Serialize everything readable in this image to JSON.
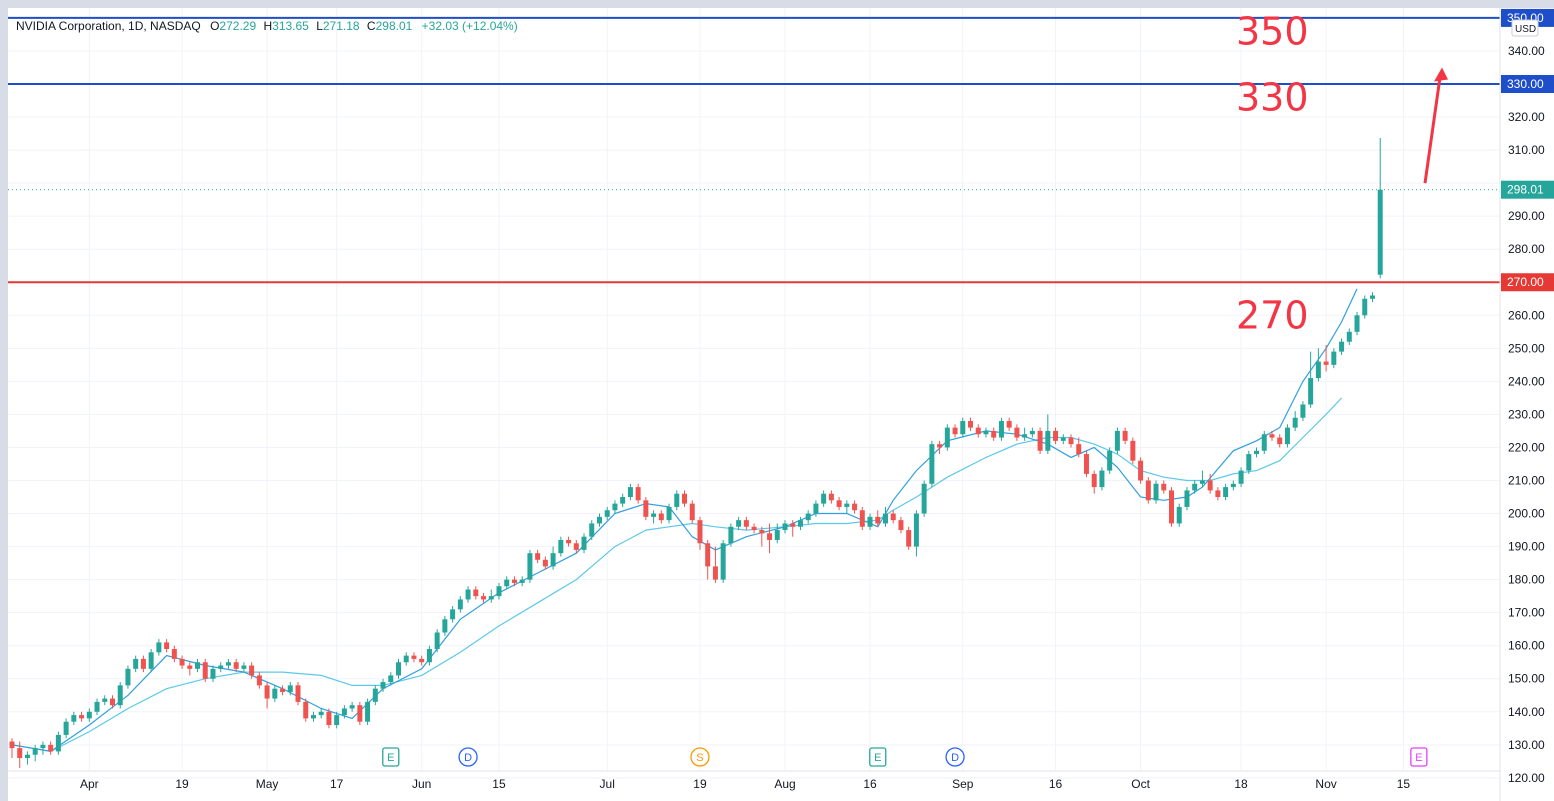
{
  "legend": {
    "symbol": "NVIDIA Corporation, 1D, NASDAQ",
    "open_label": "O",
    "open": "272.29",
    "high_label": "H",
    "high": "313.65",
    "low_label": "L",
    "low": "271.18",
    "close_label": "C",
    "close": "298.01",
    "change": "+32.03 (+12.04%)"
  },
  "price_axis": {
    "currency": "USD",
    "ticks": [
      "340.00",
      "320.00",
      "310.00",
      "290.00",
      "280.00",
      "260.00",
      "250.00",
      "240.00",
      "230.00",
      "220.00",
      "210.00",
      "200.00",
      "190.00",
      "180.00",
      "170.00",
      "160.00",
      "150.00",
      "140.00",
      "130.00",
      "120.00"
    ],
    "tick_values": [
      340,
      320,
      310,
      290,
      280,
      260,
      250,
      240,
      230,
      220,
      210,
      200,
      190,
      180,
      170,
      160,
      150,
      140,
      130,
      120
    ],
    "top_badge": "350.00"
  },
  "time_axis": {
    "labels": [
      {
        "text": "Apr",
        "i": 10
      },
      {
        "text": "19",
        "i": 22
      },
      {
        "text": "May",
        "i": 33
      },
      {
        "text": "17",
        "i": 42
      },
      {
        "text": "Jun",
        "i": 53
      },
      {
        "text": "15",
        "i": 63
      },
      {
        "text": "Jul",
        "i": 77
      },
      {
        "text": "19",
        "i": 89
      },
      {
        "text": "Aug",
        "i": 100
      },
      {
        "text": "16",
        "i": 111
      },
      {
        "text": "Sep",
        "i": 123
      },
      {
        "text": "16",
        "i": 135
      },
      {
        "text": "Oct",
        "i": 146
      },
      {
        "text": "18",
        "i": 159
      },
      {
        "text": "Nov",
        "i": 170
      },
      {
        "text": "15",
        "i": 180
      }
    ]
  },
  "colors": {
    "up": "#26a69a",
    "down": "#ef5350",
    "level_blue": "#1e4ec8",
    "level_red": "#e53935",
    "ma_fast": "#2f9fe0",
    "ma_slow": "#5cc9e8",
    "annotation": "#f23645",
    "last_price": "#26a69a"
  },
  "annotations": {
    "label_350": "350",
    "label_330": "330",
    "label_270": "270"
  },
  "event_markers": [
    {
      "letter": "E",
      "i": 49,
      "color": "#26a69a"
    },
    {
      "letter": "D",
      "i": 59,
      "color": "#2962ff"
    },
    {
      "letter": "S",
      "i": 89,
      "color": "#ff9800"
    },
    {
      "letter": "E",
      "i": 112,
      "color": "#26a69a"
    },
    {
      "letter": "D",
      "i": 122,
      "color": "#2962ff"
    },
    {
      "letter": "E",
      "i": 182,
      "color": "#e040fb"
    }
  ],
  "chart_data": {
    "type": "candlestick",
    "title": "NVIDIA Corporation, 1D, NASDAQ",
    "ylim": [
      113,
      353
    ],
    "horizontal_levels": [
      {
        "value": 350,
        "label": "350.00",
        "color": "#1e4ec8"
      },
      {
        "value": 330,
        "label": "330.00",
        "color": "#1e4ec8"
      },
      {
        "value": 270,
        "label": "270.00",
        "color": "#e53935"
      }
    ],
    "last_price": {
      "value": 298.01,
      "label": "298.01"
    },
    "candles": [
      [
        131,
        129,
        126,
        132
      ],
      [
        129,
        126,
        123,
        131
      ],
      [
        126,
        127,
        124,
        128
      ],
      [
        127,
        129,
        125,
        130
      ],
      [
        129,
        130,
        127,
        131
      ],
      [
        130,
        128,
        127,
        131
      ],
      [
        128,
        133,
        127,
        134
      ],
      [
        133,
        137,
        132,
        138
      ],
      [
        137,
        139,
        136,
        140
      ],
      [
        139,
        138,
        137,
        140
      ],
      [
        138,
        140,
        137,
        141
      ],
      [
        140,
        143,
        139,
        144
      ],
      [
        143,
        144,
        142,
        145
      ],
      [
        144,
        142,
        141,
        145
      ],
      [
        142,
        148,
        141,
        149
      ],
      [
        148,
        153,
        147,
        154
      ],
      [
        153,
        156,
        152,
        157
      ],
      [
        156,
        153,
        152,
        157
      ],
      [
        153,
        158,
        152,
        159
      ],
      [
        158,
        161,
        157,
        162
      ],
      [
        161,
        159,
        158,
        162
      ],
      [
        159,
        156,
        155,
        160
      ],
      [
        156,
        154,
        153,
        157
      ],
      [
        154,
        153,
        151,
        155
      ],
      [
        153,
        155,
        152,
        156
      ],
      [
        155,
        150,
        149,
        156
      ],
      [
        150,
        153,
        149,
        154
      ],
      [
        153,
        154,
        152,
        155
      ],
      [
        154,
        155,
        153,
        156
      ],
      [
        155,
        153,
        152,
        156
      ],
      [
        153,
        154,
        152,
        155
      ],
      [
        154,
        151,
        150,
        155
      ],
      [
        151,
        148,
        147,
        152
      ],
      [
        148,
        144,
        141,
        149
      ],
      [
        144,
        147,
        143,
        148
      ],
      [
        147,
        146,
        145,
        148
      ],
      [
        146,
        148,
        145,
        149
      ],
      [
        148,
        143,
        142,
        149
      ],
      [
        143,
        138,
        137,
        144
      ],
      [
        138,
        139,
        137,
        140
      ],
      [
        139,
        140,
        138,
        141
      ],
      [
        140,
        136,
        135,
        141
      ],
      [
        136,
        139,
        135,
        140
      ],
      [
        139,
        141,
        138,
        142
      ],
      [
        141,
        142,
        140,
        143
      ],
      [
        142,
        137,
        136,
        143
      ],
      [
        137,
        143,
        136,
        144
      ],
      [
        143,
        147,
        142,
        148
      ],
      [
        147,
        149,
        146,
        150
      ],
      [
        149,
        151,
        148,
        152
      ],
      [
        151,
        155,
        150,
        156
      ],
      [
        155,
        157,
        154,
        158
      ],
      [
        157,
        156,
        155,
        158
      ],
      [
        156,
        155,
        154,
        157
      ],
      [
        155,
        159,
        154,
        160
      ],
      [
        159,
        164,
        158,
        165
      ],
      [
        164,
        168,
        163,
        169
      ],
      [
        168,
        171,
        167,
        172
      ],
      [
        171,
        174,
        170,
        175
      ],
      [
        174,
        177,
        173,
        178
      ],
      [
        177,
        175,
        174,
        178
      ],
      [
        175,
        174,
        173,
        176
      ],
      [
        174,
        175,
        173,
        177
      ],
      [
        175,
        178,
        174,
        179
      ],
      [
        178,
        180,
        177,
        181
      ],
      [
        180,
        179,
        178,
        181
      ],
      [
        179,
        180,
        178,
        181
      ],
      [
        180,
        188,
        179,
        189
      ],
      [
        188,
        186,
        185,
        189
      ],
      [
        186,
        184,
        183,
        187
      ],
      [
        184,
        188,
        183,
        190
      ],
      [
        188,
        192,
        187,
        193
      ],
      [
        192,
        191,
        190,
        193
      ],
      [
        191,
        189,
        188,
        192
      ],
      [
        189,
        193,
        188,
        194
      ],
      [
        193,
        197,
        192,
        198
      ],
      [
        197,
        199,
        196,
        200
      ],
      [
        199,
        201,
        198,
        202
      ],
      [
        201,
        203,
        200,
        204
      ],
      [
        203,
        205,
        202,
        206
      ],
      [
        205,
        208,
        204,
        209
      ],
      [
        208,
        204,
        203,
        209
      ],
      [
        204,
        199,
        198,
        205
      ],
      [
        199,
        200,
        197,
        201
      ],
      [
        200,
        198,
        197,
        201
      ],
      [
        198,
        202,
        197,
        203
      ],
      [
        202,
        206,
        201,
        207
      ],
      [
        206,
        203,
        202,
        207
      ],
      [
        203,
        198,
        197,
        204
      ],
      [
        198,
        191,
        189,
        199
      ],
      [
        191,
        184,
        180,
        192
      ],
      [
        184,
        180,
        179,
        190
      ],
      [
        180,
        191,
        179,
        192
      ],
      [
        191,
        196,
        190,
        197
      ],
      [
        196,
        198,
        195,
        199
      ],
      [
        198,
        196,
        195,
        199
      ],
      [
        196,
        195,
        194,
        197
      ],
      [
        195,
        194,
        190,
        196
      ],
      [
        194,
        192,
        188,
        197
      ],
      [
        192,
        195,
        191,
        197
      ],
      [
        195,
        197,
        194,
        198
      ],
      [
        197,
        196,
        193,
        198
      ],
      [
        196,
        198,
        195,
        199
      ],
      [
        198,
        200,
        197,
        201
      ],
      [
        200,
        203,
        199,
        204
      ],
      [
        203,
        206,
        202,
        207
      ],
      [
        206,
        204,
        203,
        207
      ],
      [
        204,
        202,
        201,
        205
      ],
      [
        202,
        203,
        200,
        204
      ],
      [
        203,
        201,
        200,
        204
      ],
      [
        201,
        196,
        195,
        202
      ],
      [
        196,
        199,
        195,
        200
      ],
      [
        199,
        197,
        196,
        201
      ],
      [
        197,
        200,
        196,
        202
      ],
      [
        200,
        198,
        197,
        201
      ],
      [
        198,
        195,
        194,
        199
      ],
      [
        195,
        190,
        189,
        196
      ],
      [
        190,
        200,
        187,
        201
      ],
      [
        200,
        209,
        199,
        210
      ],
      [
        209,
        221,
        208,
        222
      ],
      [
        221,
        220,
        218,
        222
      ],
      [
        220,
        226,
        219,
        227
      ],
      [
        226,
        224,
        223,
        227
      ],
      [
        224,
        228,
        223,
        229
      ],
      [
        228,
        226,
        225,
        229
      ],
      [
        226,
        224,
        223,
        227
      ],
      [
        224,
        225,
        223,
        226
      ],
      [
        225,
        223,
        222,
        226
      ],
      [
        223,
        228,
        222,
        229
      ],
      [
        228,
        226,
        225,
        229
      ],
      [
        226,
        223,
        222,
        227
      ],
      [
        223,
        224,
        222,
        226
      ],
      [
        224,
        225,
        223,
        226
      ],
      [
        225,
        219,
        218,
        226
      ],
      [
        219,
        225,
        218,
        230
      ],
      [
        225,
        222,
        221,
        226
      ],
      [
        222,
        223,
        221,
        224
      ],
      [
        223,
        221,
        220,
        224
      ],
      [
        221,
        218,
        217,
        223
      ],
      [
        218,
        212,
        211,
        219
      ],
      [
        212,
        208,
        206,
        213
      ],
      [
        208,
        213,
        207,
        214
      ],
      [
        213,
        219,
        212,
        220
      ],
      [
        219,
        225,
        218,
        226
      ],
      [
        225,
        222,
        221,
        226
      ],
      [
        222,
        216,
        215,
        223
      ],
      [
        216,
        210,
        209,
        217
      ],
      [
        210,
        204,
        203,
        211
      ],
      [
        204,
        209,
        203,
        210
      ],
      [
        209,
        207,
        206,
        210
      ],
      [
        207,
        197,
        196,
        208
      ],
      [
        197,
        202,
        196,
        203
      ],
      [
        202,
        207,
        201,
        208
      ],
      [
        207,
        209,
        206,
        210
      ],
      [
        209,
        210,
        208,
        213
      ],
      [
        210,
        207,
        206,
        212
      ],
      [
        207,
        205,
        204,
        208
      ],
      [
        205,
        208,
        204,
        209
      ],
      [
        208,
        209,
        207,
        210
      ],
      [
        209,
        213,
        208,
        214
      ],
      [
        213,
        218,
        212,
        219
      ],
      [
        218,
        219,
        217,
        220
      ],
      [
        219,
        224,
        218,
        225
      ],
      [
        224,
        223,
        222,
        225
      ],
      [
        223,
        221,
        220,
        224
      ],
      [
        221,
        226,
        220,
        227
      ],
      [
        226,
        229,
        225,
        231
      ],
      [
        229,
        233,
        228,
        234
      ],
      [
        233,
        241,
        232,
        249
      ],
      [
        241,
        246,
        240,
        250
      ],
      [
        246,
        245,
        243,
        251
      ],
      [
        245,
        249,
        244,
        250
      ],
      [
        249,
        252,
        248,
        253
      ],
      [
        252,
        255,
        251,
        256
      ],
      [
        255,
        260,
        254,
        261
      ],
      [
        260,
        265,
        259,
        266
      ],
      [
        265,
        266,
        264,
        267
      ],
      [
        272.29,
        298.01,
        271.18,
        313.65
      ]
    ],
    "ma_fast": [
      [
        0,
        130
      ],
      [
        5,
        128
      ],
      [
        10,
        136
      ],
      [
        15,
        145
      ],
      [
        20,
        157
      ],
      [
        25,
        154
      ],
      [
        30,
        152
      ],
      [
        35,
        147
      ],
      [
        40,
        141
      ],
      [
        44,
        138
      ],
      [
        48,
        147
      ],
      [
        53,
        153
      ],
      [
        58,
        168
      ],
      [
        63,
        176
      ],
      [
        68,
        182
      ],
      [
        73,
        188
      ],
      [
        78,
        200
      ],
      [
        82,
        203
      ],
      [
        85,
        202
      ],
      [
        88,
        193
      ],
      [
        91,
        189
      ],
      [
        95,
        193
      ],
      [
        100,
        196
      ],
      [
        104,
        200
      ],
      [
        108,
        200
      ],
      [
        112,
        196
      ],
      [
        114,
        204
      ],
      [
        117,
        213
      ],
      [
        121,
        222
      ],
      [
        126,
        225
      ],
      [
        130,
        224
      ],
      [
        134,
        221
      ],
      [
        137,
        217
      ],
      [
        140,
        220
      ],
      [
        143,
        214
      ],
      [
        146,
        205
      ],
      [
        149,
        204
      ],
      [
        152,
        205
      ],
      [
        154,
        208
      ],
      [
        158,
        219
      ],
      [
        161,
        222
      ],
      [
        164,
        226
      ],
      [
        167,
        240
      ],
      [
        170,
        250
      ],
      [
        172,
        258
      ],
      [
        174,
        268
      ]
    ],
    "ma_slow": [
      [
        0,
        130
      ],
      [
        5,
        128
      ],
      [
        10,
        134
      ],
      [
        15,
        141
      ],
      [
        20,
        147
      ],
      [
        25,
        150
      ],
      [
        30,
        152
      ],
      [
        35,
        152
      ],
      [
        40,
        151
      ],
      [
        44,
        148
      ],
      [
        48,
        148
      ],
      [
        53,
        151
      ],
      [
        58,
        158
      ],
      [
        63,
        166
      ],
      [
        68,
        173
      ],
      [
        73,
        180
      ],
      [
        78,
        190
      ],
      [
        82,
        195
      ],
      [
        85,
        196
      ],
      [
        88,
        197
      ],
      [
        91,
        196
      ],
      [
        95,
        195
      ],
      [
        100,
        196
      ],
      [
        104,
        197
      ],
      [
        108,
        197
      ],
      [
        112,
        198
      ],
      [
        114,
        201
      ],
      [
        117,
        205
      ],
      [
        121,
        211
      ],
      [
        126,
        217
      ],
      [
        130,
        221
      ],
      [
        134,
        223
      ],
      [
        137,
        223
      ],
      [
        140,
        221
      ],
      [
        143,
        218
      ],
      [
        146,
        213
      ],
      [
        149,
        211
      ],
      [
        152,
        210
      ],
      [
        155,
        210
      ],
      [
        158,
        212
      ],
      [
        161,
        213
      ],
      [
        164,
        216
      ],
      [
        167,
        223
      ],
      [
        170,
        230
      ],
      [
        172,
        235
      ]
    ]
  }
}
